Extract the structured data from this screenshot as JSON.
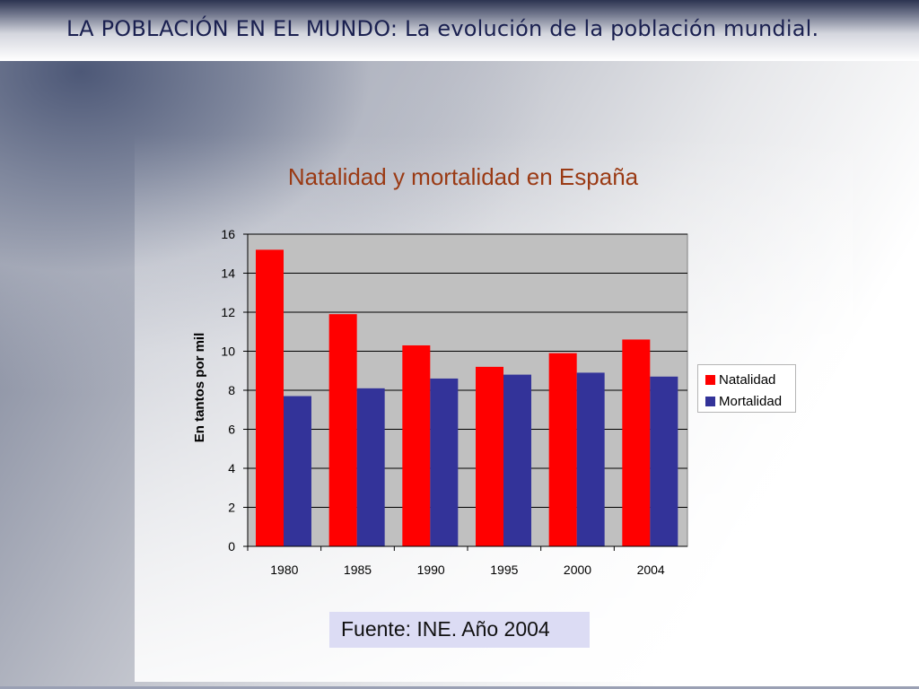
{
  "slide": {
    "title_main": "LA POBLACIÓN EN EL MUNDO",
    "title_sep": ": ",
    "title_sub": "La evolución de la población mundial."
  },
  "chart_data": {
    "type": "bar",
    "title": "Natalidad y mortalidad en España",
    "xlabel": "",
    "ylabel": "En tantos por mil",
    "categories": [
      "1980",
      "1985",
      "1990",
      "1995",
      "2000",
      "2004"
    ],
    "series": [
      {
        "name": "Natalidad",
        "values": [
          15.2,
          11.9,
          10.3,
          9.2,
          9.9,
          10.6
        ],
        "color": "#ff0000"
      },
      {
        "name": "Mortalidad",
        "values": [
          7.7,
          8.1,
          8.6,
          8.8,
          8.9,
          8.7
        ],
        "color": "#333399"
      }
    ],
    "ylim": [
      0,
      16
    ],
    "yticks": [
      "0",
      "2",
      "4",
      "6",
      "8",
      "10",
      "12",
      "14",
      "16"
    ],
    "grid": true,
    "legend_position": "right",
    "plot_background": "#c0c0c0"
  },
  "source": {
    "text": "Fuente: INE. Año 2004"
  }
}
